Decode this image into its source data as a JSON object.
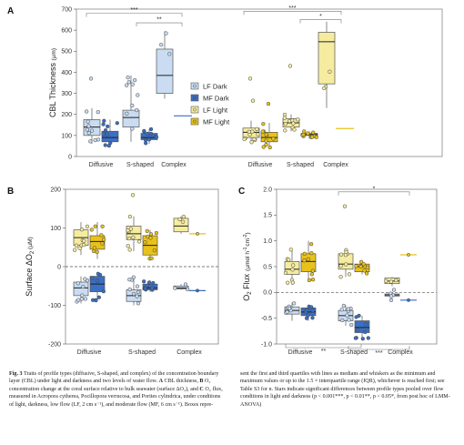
{
  "colors": {
    "lf_dark": "#c9dcf2",
    "mf_dark": "#3a6fc4",
    "lf_light": "#f6eca0",
    "mf_light": "#e8c21a",
    "median_pair": "#222222"
  },
  "legend": {
    "items": [
      {
        "label": "LF Dark",
        "key": "lf_dark"
      },
      {
        "label": "MF Dark",
        "key": "mf_dark"
      },
      {
        "label": "LF Light",
        "key": "lf_light"
      },
      {
        "label": "MF Light",
        "key": "mf_light"
      }
    ]
  },
  "chart_data": [
    {
      "panel": "A",
      "type": "box",
      "ylabel": "CBL Thickness",
      "ylabel_unit": "(µm)",
      "ylim": [
        0,
        700
      ],
      "yticks": [
        "0",
        "100",
        "200",
        "300",
        "400",
        "500",
        "600",
        "700"
      ],
      "categories": [
        "Diffusive",
        "S-shaped",
        "Complex"
      ],
      "groups": [
        {
          "name": "Dark",
          "series": [
            {
              "name": "LF Dark",
              "boxes": [
                {
                  "category": "Diffusive",
                  "min": 60,
                  "q1": 100,
                  "median": 140,
                  "q3": 175,
                  "max": 230,
                  "outliers": [
                    370
                  ]
                },
                {
                  "category": "S-shaped",
                  "min": 70,
                  "q1": 140,
                  "median": 185,
                  "q3": 220,
                  "max": 385,
                  "outliers": []
                },
                {
                  "category": "Complex",
                  "min": 275,
                  "q1": 300,
                  "median": 385,
                  "q3": 510,
                  "max": 595,
                  "outliers": []
                }
              ]
            },
            {
              "name": "MF Dark",
              "boxes": [
                {
                  "category": "Diffusive",
                  "min": 50,
                  "q1": 70,
                  "median": 90,
                  "q3": 120,
                  "max": 175,
                  "outliers": []
                },
                {
                  "category": "S-shaped",
                  "min": 60,
                  "q1": 80,
                  "median": 90,
                  "q3": 110,
                  "max": 130,
                  "outliers": []
                },
                {
                  "category": "Complex",
                  "min": 193,
                  "q1": 193,
                  "median": 193,
                  "q3": 193,
                  "max": 193,
                  "outliers": []
                }
              ]
            }
          ],
          "significance": [
            {
              "label": "***",
              "level": 680
            },
            {
              "label": "**",
              "level": 635
            }
          ]
        },
        {
          "name": "Light",
          "series": [
            {
              "name": "LF Light",
              "boxes": [
                {
                  "category": "Diffusive",
                  "min": 60,
                  "q1": 90,
                  "median": 115,
                  "q3": 135,
                  "max": 170,
                  "outliers": [
                    370,
                    265
                  ]
                },
                {
                  "category": "S-shaped",
                  "min": 120,
                  "q1": 140,
                  "median": 160,
                  "q3": 180,
                  "max": 200,
                  "outliers": [
                    430
                  ]
                },
                {
                  "category": "Complex",
                  "min": 230,
                  "q1": 345,
                  "median": 545,
                  "q3": 590,
                  "max": 640,
                  "outliers": []
                }
              ]
            },
            {
              "name": "MF Light",
              "boxes": [
                {
                  "category": "Diffusive",
                  "min": 40,
                  "q1": 70,
                  "median": 90,
                  "q3": 115,
                  "max": 160,
                  "outliers": [
                    250
                  ]
                },
                {
                  "category": "S-shaped",
                  "min": 85,
                  "q1": 100,
                  "median": 105,
                  "q3": 110,
                  "max": 120,
                  "outliers": []
                },
                {
                  "category": "Complex",
                  "min": 133,
                  "q1": 133,
                  "median": 133,
                  "q3": 133,
                  "max": 133,
                  "outliers": []
                }
              ]
            }
          ],
          "significance": [
            {
              "label": "***",
              "level": 690
            },
            {
              "label": "*",
              "level": 650
            }
          ]
        }
      ]
    },
    {
      "panel": "B",
      "type": "box",
      "ylabel": "Surface ΔO",
      "ylabel_sub": "2",
      "ylabel_unit": "(µM)",
      "ylim": [
        -200,
        200
      ],
      "yticks": [
        "-200",
        "-100",
        "0",
        "100",
        "200"
      ],
      "zero_line": true,
      "categories": [
        "Diffusive",
        "S-shaped",
        "Complex"
      ],
      "series": [
        {
          "name": "LF Light",
          "boxes": [
            {
              "category": "Diffusive",
              "min": 30,
              "q1": 55,
              "median": 75,
              "q3": 95,
              "max": 115,
              "outliers": []
            },
            {
              "category": "S-shaped",
              "min": 40,
              "q1": 70,
              "median": 85,
              "q3": 105,
              "max": 130,
              "outliers": [
                185
              ]
            },
            {
              "category": "Complex",
              "min": 85,
              "q1": 90,
              "median": 105,
              "q3": 125,
              "max": 130,
              "outliers": []
            }
          ]
        },
        {
          "name": "MF Light",
          "boxes": [
            {
              "category": "Diffusive",
              "min": 20,
              "q1": 45,
              "median": 65,
              "q3": 80,
              "max": 115,
              "outliers": []
            },
            {
              "category": "S-shaped",
              "min": 20,
              "q1": 30,
              "median": 55,
              "q3": 80,
              "max": 95,
              "outliers": []
            },
            {
              "category": "Complex",
              "min": 85,
              "q1": 85,
              "median": 85,
              "q3": 85,
              "max": 85,
              "outliers": []
            }
          ]
        },
        {
          "name": "LF Dark",
          "boxes": [
            {
              "category": "Diffusive",
              "min": -95,
              "q1": -75,
              "median": -55,
              "q3": -40,
              "max": -25,
              "outliers": []
            },
            {
              "category": "S-shaped",
              "min": -100,
              "q1": -90,
              "median": -75,
              "q3": -60,
              "max": -25,
              "outliers": []
            },
            {
              "category": "Complex",
              "min": -60,
              "q1": -58,
              "median": -55,
              "q3": -50,
              "max": -45,
              "outliers": []
            }
          ]
        },
        {
          "name": "MF Dark",
          "boxes": [
            {
              "category": "Diffusive",
              "min": -90,
              "q1": -65,
              "median": -45,
              "q3": -25,
              "max": -15,
              "outliers": []
            },
            {
              "category": "S-shaped",
              "min": -65,
              "q1": -60,
              "median": -55,
              "q3": -45,
              "max": -35,
              "outliers": []
            },
            {
              "category": "Complex",
              "min": -62,
              "q1": -62,
              "median": -62,
              "q3": -62,
              "max": -62,
              "outliers": []
            }
          ]
        }
      ]
    },
    {
      "panel": "C",
      "type": "box",
      "ylabel": "O",
      "ylabel_sub": "2",
      "ylabel_tail": " Flux",
      "ylabel_unit": "(µmol h",
      "ylabel_sup1": "-1",
      "ylabel_unit2": "cm",
      "ylabel_sup2": "-2",
      "ylabel_close": ")",
      "ylim": [
        -1.0,
        2.0
      ],
      "yticks": [
        "-1.0",
        "-0.5",
        "0.0",
        "0.5",
        "1.0",
        "1.5",
        "2.0"
      ],
      "zero_line": true,
      "categories": [
        "Diffusive",
        "S-shaped",
        "Complex"
      ],
      "series": [
        {
          "name": "LF Light",
          "boxes": [
            {
              "category": "Diffusive",
              "min": 0.15,
              "q1": 0.35,
              "median": 0.45,
              "q3": 0.6,
              "max": 0.85,
              "outliers": []
            },
            {
              "category": "S-shaped",
              "min": 0.3,
              "q1": 0.45,
              "median": 0.55,
              "q3": 0.75,
              "max": 0.85,
              "outliers": [
                1.67
              ]
            },
            {
              "category": "Complex",
              "min": 0.12,
              "q1": 0.17,
              "median": 0.22,
              "q3": 0.28,
              "max": 0.3,
              "outliers": []
            }
          ]
        },
        {
          "name": "MF Light",
          "boxes": [
            {
              "category": "Diffusive",
              "min": 0.2,
              "q1": 0.4,
              "median": 0.6,
              "q3": 0.75,
              "max": 1.0,
              "outliers": []
            },
            {
              "category": "S-shaped",
              "min": 0.35,
              "q1": 0.4,
              "median": 0.5,
              "q3": 0.55,
              "max": 0.6,
              "outliers": []
            },
            {
              "category": "Complex",
              "min": 0.73,
              "q1": 0.73,
              "median": 0.73,
              "q3": 0.73,
              "max": 0.73,
              "outliers": []
            }
          ]
        },
        {
          "name": "LF Dark",
          "boxes": [
            {
              "category": "Diffusive",
              "min": -0.55,
              "q1": -0.42,
              "median": -0.35,
              "q3": -0.28,
              "max": -0.2,
              "outliers": []
            },
            {
              "category": "S-shaped",
              "min": -0.65,
              "q1": -0.55,
              "median": -0.45,
              "q3": -0.35,
              "max": -0.25,
              "outliers": []
            },
            {
              "category": "Complex",
              "min": -0.08,
              "q1": -0.07,
              "median": -0.05,
              "q3": -0.03,
              "max": -0.02,
              "outliers": [
                -0.15,
                0.05
              ]
            }
          ]
        },
        {
          "name": "MF Dark",
          "boxes": [
            {
              "category": "Diffusive",
              "min": -0.55,
              "q1": -0.45,
              "median": -0.38,
              "q3": -0.3,
              "max": -0.25,
              "outliers": []
            },
            {
              "category": "S-shaped",
              "min": -0.9,
              "q1": -0.78,
              "median": -0.68,
              "q3": -0.55,
              "max": -0.45,
              "outliers": []
            },
            {
              "category": "Complex",
              "min": -0.15,
              "q1": -0.15,
              "median": -0.15,
              "q3": -0.15,
              "max": -0.15,
              "outliers": []
            }
          ]
        }
      ],
      "significance": [
        {
          "label": "*",
          "between": [
            "S-shaped",
            "Complex"
          ],
          "position": "top"
        },
        {
          "label": "**",
          "position": "bottom"
        },
        {
          "label": "***",
          "position": "bottom"
        }
      ]
    }
  ],
  "caption": {
    "left": [
      {
        "t": "Fig. 3",
        "b": true
      },
      {
        "t": " Traits of profile types (diffusive, S-shaped, and complex) of the concentration boundary layer (CBL) under light and darkness and two levels of water flow. "
      },
      {
        "t": "A",
        "b": true
      },
      {
        "t": " CBL thickness, "
      },
      {
        "t": "B",
        "b": true
      },
      {
        "t": " O₂ concentration change at the coral surface relative to bulk seawater (surface ΔO₂), and "
      },
      {
        "t": "C",
        "b": true
      },
      {
        "t": " O₂ flux, measured in Acropora cytherea, Pocillopora verrucosa, and Porites cylindrica, under conditions of light, darkness, low flow (LF, 2 cm s⁻¹), and moderate flow (MF, 6 cm s⁻¹). Boxes repre-"
      }
    ],
    "right": [
      {
        "t": "sent the first and third quartiles with lines as medians and whiskers as the minimum and maximum values or up to the 1.5 × interquartile range (IQR), whichever is reached first; see Table S3 for n. Stars indicate significant differences between profile types pooled over flow conditions in light and darkness (p < 0.001***, p < 0.01**, p < 0.05*, from post hoc of LMM-ANOVA)"
      }
    ]
  }
}
